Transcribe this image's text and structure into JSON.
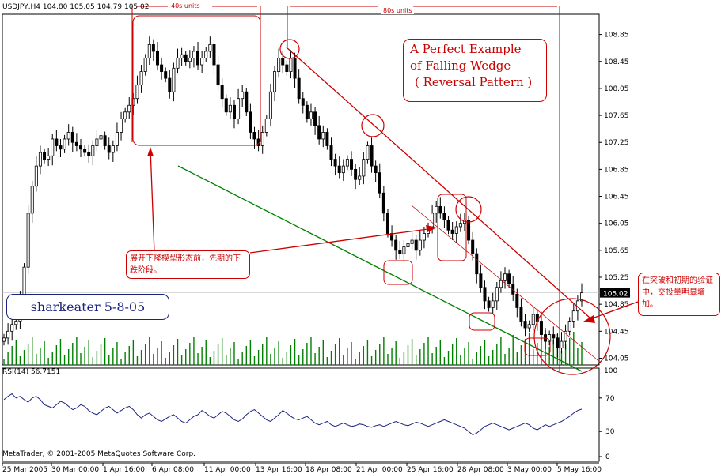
{
  "chart_data": {
    "type": "candlestick",
    "symbol": "USDJPY,H4",
    "ohlc": {
      "open": "104.80",
      "high": "105.05",
      "low": "104.79",
      "close": "105.02"
    },
    "price_ticks": [
      "108.85",
      "108.45",
      "108.05",
      "107.65",
      "107.25",
      "106.85",
      "106.45",
      "106.05",
      "105.65",
      "105.25",
      "104.85",
      "104.45",
      "104.05"
    ],
    "price_range": [
      103.95,
      109.15
    ],
    "current_price": "105.02",
    "date_ticks": [
      "25 Mar 2005",
      "30 Mar 00:00",
      "1 Apr 16:00",
      "6 Apr 08:00",
      "11 Apr 00:00",
      "13 Apr 16:00",
      "18 Apr 08:00",
      "21 Apr 00:00",
      "25 Apr 16:00",
      "28 Apr 08:00",
      "3 May 00:00",
      "5 May 16:00"
    ],
    "close_series": [
      104.35,
      104.45,
      104.55,
      104.6,
      104.95,
      105.4,
      106.2,
      106.6,
      106.9,
      107.1,
      107.0,
      107.05,
      107.3,
      107.2,
      107.15,
      107.3,
      107.4,
      107.25,
      107.2,
      107.15,
      107.1,
      107.05,
      107.2,
      107.3,
      107.35,
      107.2,
      107.1,
      107.2,
      107.4,
      107.6,
      107.7,
      107.8,
      107.9,
      108.1,
      108.3,
      108.5,
      108.7,
      108.6,
      108.4,
      108.3,
      108.2,
      108.0,
      108.35,
      108.5,
      108.55,
      108.45,
      108.5,
      108.6,
      108.4,
      108.5,
      108.6,
      108.7,
      108.4,
      108.1,
      107.9,
      107.7,
      107.8,
      107.6,
      107.9,
      108.0,
      107.7,
      107.4,
      107.3,
      107.2,
      107.4,
      107.6,
      108.0,
      108.3,
      108.5,
      108.4,
      108.3,
      108.5,
      108.2,
      107.9,
      107.8,
      107.6,
      107.7,
      107.5,
      107.3,
      107.4,
      107.2,
      107.0,
      106.9,
      106.8,
      106.9,
      107.0,
      106.85,
      106.7,
      106.75,
      107.0,
      107.2,
      106.9,
      106.8,
      106.5,
      106.2,
      105.9,
      105.8,
      105.65,
      105.6,
      105.7,
      105.75,
      105.8,
      105.65,
      105.8,
      105.9,
      106.0,
      106.2,
      106.3,
      106.2,
      106.1,
      105.95,
      105.9,
      106.0,
      106.05,
      106.1,
      105.8,
      105.6,
      105.3,
      105.1,
      104.9,
      104.8,
      104.9,
      105.1,
      105.2,
      105.3,
      105.15,
      105.0,
      104.8,
      104.6,
      104.5,
      104.55,
      104.7,
      104.6,
      104.4,
      104.3,
      104.4,
      104.35,
      104.2,
      104.3,
      104.45,
      104.6,
      104.75,
      104.9,
      105.02
    ],
    "volume_range": [
      0,
      100
    ],
    "rsi_label": "RSI(14) 56.7151",
    "rsi_ticks": [
      "70",
      "30",
      "0"
    ],
    "rsi_range": [
      0,
      100
    ],
    "volume_tick": "100",
    "rsi_values": [
      68,
      72,
      75,
      70,
      72,
      68,
      65,
      70,
      72,
      68,
      62,
      60,
      58,
      62,
      66,
      64,
      60,
      56,
      58,
      62,
      60,
      55,
      52,
      50,
      54,
      58,
      60,
      56,
      52,
      55,
      58,
      60,
      56,
      50,
      46,
      50,
      52,
      48,
      44,
      42,
      45,
      48,
      50,
      46,
      42,
      40,
      44,
      48,
      50,
      55,
      52,
      48,
      46,
      50,
      54,
      52,
      48,
      44,
      42,
      45,
      50,
      54,
      56,
      52,
      48,
      44,
      42,
      46,
      50,
      55,
      52,
      48,
      45,
      44,
      46,
      48,
      44,
      40,
      38,
      40,
      42,
      38,
      36,
      38,
      40,
      38,
      36,
      37,
      39,
      38,
      36,
      35,
      37,
      38,
      36,
      38,
      40,
      42,
      40,
      38,
      37,
      39,
      41,
      40,
      38,
      36,
      38,
      40,
      42,
      44,
      42,
      40,
      38,
      36,
      34,
      30,
      26,
      28,
      32,
      36,
      38,
      40,
      38,
      36,
      34,
      32,
      34,
      36,
      38,
      40,
      38,
      34,
      32,
      35,
      38,
      36,
      38,
      40,
      42,
      45,
      48,
      52,
      55,
      56.7151
    ],
    "annotations": {
      "title_lines": [
        "A Perfect Example",
        "of Falling Wedge",
        "( Reversal Pattern )"
      ],
      "units_left": "40s  units",
      "units_right": "80s units",
      "cn_note_1": "展开下降楔型形态前，先期的下跌阶段。",
      "cn_note_2": "在突破和初期的验证中，交投量明显增加。",
      "signature": "sharkeater   5-8-05",
      "copyright": "MetaTrader, © 2001-2005 MetaQuotes Software Corp."
    },
    "colors": {
      "candle": "#000000",
      "volume": "#008000",
      "annotation": "#cc0000",
      "support_line": "#008000",
      "rsi": "#1a237e",
      "signature": "#1a237e"
    }
  }
}
